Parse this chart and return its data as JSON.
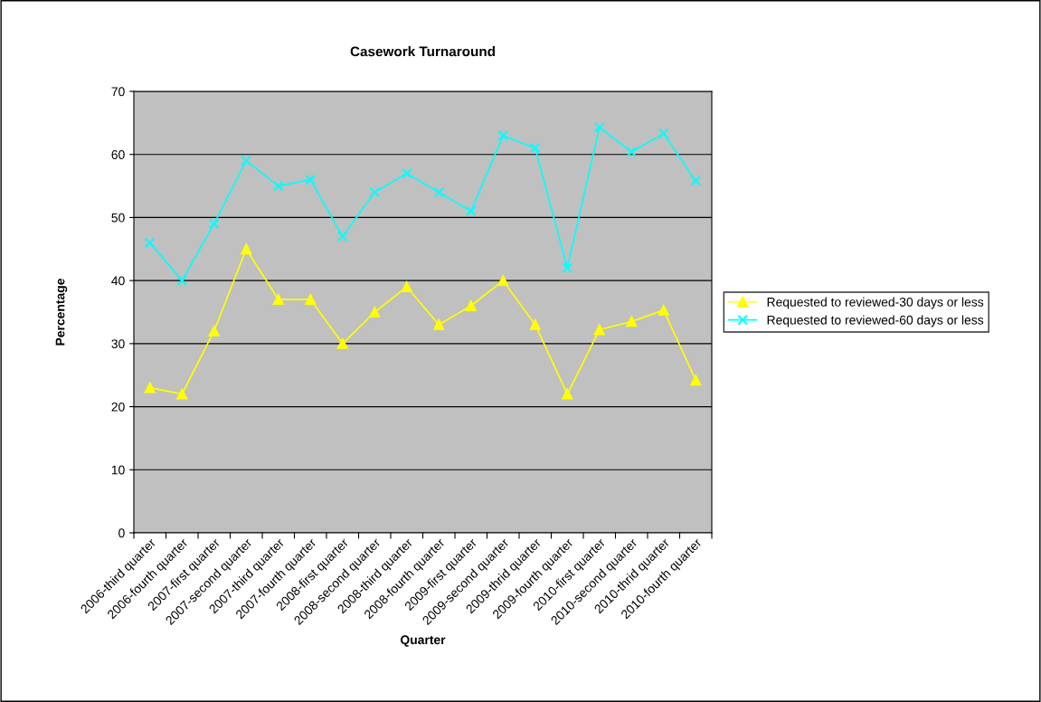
{
  "chart_data": {
    "type": "line",
    "title": "Casework Turnaround",
    "xlabel": "Quarter",
    "ylabel": "Percentage",
    "categories": [
      "2006-third quarter",
      "2006-fourth quarter",
      "2007-first quarter",
      "2007-second quarter",
      "2007-third quarter",
      "2007-fourth quarter",
      "2008-first quarter",
      "2008-second quarter",
      "2008-third quarter",
      "2008-fourth quarter",
      "2009-first quarter",
      "2009-second quarter",
      "2009-thrid quarter",
      "2009-fourth quarter",
      "2010-first quarter",
      "2010-second quarter",
      "2010-thrid quarter",
      "2010-fourth quarter"
    ],
    "series": [
      {
        "name": "Requested to reviewed-30 days or less",
        "color": "#ffff00",
        "marker": "triangle",
        "values": [
          23,
          22,
          32,
          45,
          37,
          37,
          30,
          35,
          39,
          33,
          36,
          40,
          33,
          22,
          32.2,
          33.5,
          35.3,
          24.2
        ]
      },
      {
        "name": "Requested to reviewed-60 days or less",
        "color": "#00ffff",
        "marker": "cross",
        "values": [
          46,
          40,
          49,
          59,
          55,
          56,
          47,
          54,
          57,
          54,
          51,
          63,
          61,
          42,
          64.3,
          60.4,
          63.3,
          55.8
        ]
      }
    ],
    "ylim": [
      0,
      70
    ],
    "yticks": [
      0,
      10,
      20,
      30,
      40,
      50,
      60,
      70
    ],
    "grid": "y",
    "legend": "right",
    "line_style": "solid"
  }
}
